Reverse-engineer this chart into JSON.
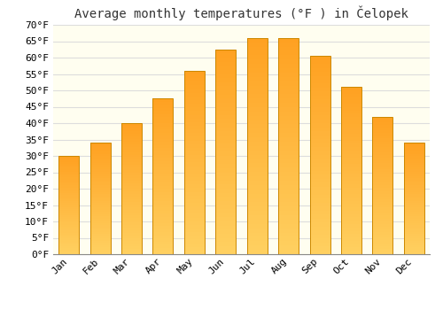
{
  "title": "Average monthly temperatures (°F ) in Čelopek",
  "months": [
    "Jan",
    "Feb",
    "Mar",
    "Apr",
    "May",
    "Jun",
    "Jul",
    "Aug",
    "Sep",
    "Oct",
    "Nov",
    "Dec"
  ],
  "values": [
    30,
    34,
    40,
    47.5,
    56,
    62.5,
    66,
    66,
    60.5,
    51,
    42,
    34
  ],
  "bar_color_top": "#FFA500",
  "bar_color_bottom": "#FFD700",
  "bar_edge_color": "#CC8800",
  "background_color": "#FFFFFF",
  "grid_color": "#DDDDDD",
  "plot_bg_color": "#FFFEF0",
  "ylim": [
    0,
    70
  ],
  "yticks": [
    0,
    5,
    10,
    15,
    20,
    25,
    30,
    35,
    40,
    45,
    50,
    55,
    60,
    65,
    70
  ],
  "ylabel_suffix": "°F",
  "title_fontsize": 10,
  "tick_fontsize": 8,
  "font_family": "monospace"
}
